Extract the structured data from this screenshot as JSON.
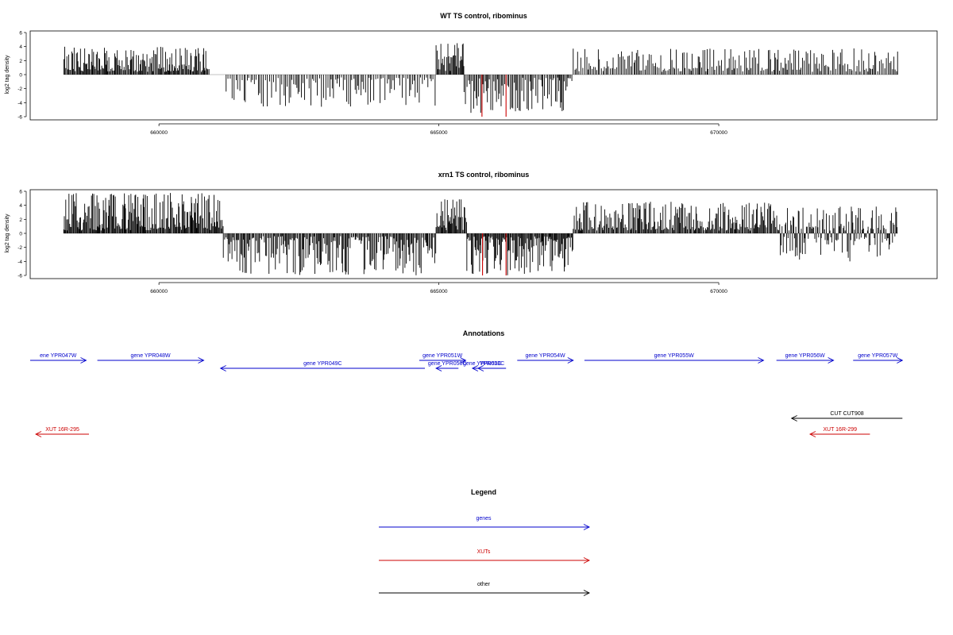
{
  "chart_data": [
    {
      "type": "bar",
      "title": "WT TS control, ribominus",
      "ylabel": "log2 tag density",
      "xlabel": "",
      "ylim": [
        -6,
        6
      ],
      "yticks": [
        6,
        4,
        2,
        0,
        -2,
        -4,
        -6
      ],
      "xticks": [
        660000,
        665000,
        670000
      ],
      "xlim": [
        657700,
        673900
      ],
      "data_start": 658300,
      "data_end": 673200,
      "grid": false,
      "highlight_color": "#cc0000",
      "bar_color": "#000000",
      "segments": [
        {
          "start": 658300,
          "end": 660900,
          "sign": 1,
          "max": 4.0,
          "density": 0.9
        },
        {
          "start": 661200,
          "end": 664950,
          "sign": -1,
          "max": 4.6,
          "density": 0.45
        },
        {
          "start": 664950,
          "end": 665450,
          "sign": 1,
          "max": 4.8,
          "density": 0.9
        },
        {
          "start": 665450,
          "end": 667400,
          "sign": -1,
          "max": 5.5,
          "density": 0.6
        },
        {
          "start": 667400,
          "end": 673200,
          "sign": 1,
          "max": 3.8,
          "density": 0.55
        }
      ],
      "highlights": [
        {
          "x": 665770,
          "value": -6
        },
        {
          "x": 666200,
          "value": -6
        }
      ]
    },
    {
      "type": "bar",
      "title": "xrn1 TS control, ribominus",
      "ylabel": "log2 tag density",
      "xlabel": "",
      "ylim": [
        -6,
        6
      ],
      "yticks": [
        6,
        4,
        2,
        0,
        -2,
        -4,
        -6
      ],
      "xticks": [
        660000,
        665000,
        670000
      ],
      "xlim": [
        657700,
        673900
      ],
      "data_start": 658300,
      "data_end": 673200,
      "grid": false,
      "highlight_color": "#cc0000",
      "bar_color": "#000000",
      "segments": [
        {
          "start": 658300,
          "end": 661150,
          "sign": 1,
          "max": 5.8,
          "density": 1.0
        },
        {
          "start": 661150,
          "end": 664950,
          "sign": -1,
          "max": 6.0,
          "density": 0.8
        },
        {
          "start": 664950,
          "end": 665500,
          "sign": 1,
          "max": 5.0,
          "density": 1.0
        },
        {
          "start": 665500,
          "end": 667400,
          "sign": -1,
          "max": 6.0,
          "density": 1.0
        },
        {
          "start": 667400,
          "end": 671100,
          "sign": 1,
          "max": 4.5,
          "density": 0.85
        },
        {
          "start": 671100,
          "end": 673200,
          "sign": 0,
          "max": 4.0,
          "density": 0.95
        }
      ],
      "highlights": [
        {
          "x": 665780,
          "value": -6
        },
        {
          "x": 666200,
          "value": -6
        }
      ]
    }
  ],
  "annotations": {
    "title": "Annotations",
    "features": [
      {
        "label": "ene YPR047W",
        "color": "#0000cc",
        "start": 657700,
        "end": 658700,
        "dir": "right",
        "row": 0
      },
      {
        "label": "gene YPR048W",
        "color": "#0000cc",
        "start": 658900,
        "end": 660800,
        "dir": "right",
        "row": 0
      },
      {
        "label": "gene YPR049C",
        "color": "#0000cc",
        "start": 661100,
        "end": 664750,
        "dir": "left",
        "row": 1
      },
      {
        "label": "gene YPR051W",
        "color": "#0000cc",
        "start": 664650,
        "end": 665480,
        "dir": "right",
        "row": 0
      },
      {
        "label": "gene YPR050C",
        "color": "#0000cc",
        "start": 664950,
        "end": 665350,
        "dir": "left",
        "row": 1
      },
      {
        "label": "gene YPR052C",
        "color": "#0000cc",
        "start": 665600,
        "end": 665950,
        "dir": "left",
        "row": 1
      },
      {
        "label": "YPR053C",
        "color": "#0000cc",
        "start": 665700,
        "end": 666200,
        "dir": "left",
        "row": 1
      },
      {
        "label": "gene YPR054W",
        "color": "#0000cc",
        "start": 666400,
        "end": 667400,
        "dir": "right",
        "row": 0
      },
      {
        "label": "gene YPR055W",
        "color": "#0000cc",
        "start": 667600,
        "end": 670800,
        "dir": "right",
        "row": 0
      },
      {
        "label": "gene YPR056W",
        "color": "#0000cc",
        "start": 671030,
        "end": 672050,
        "dir": "right",
        "row": 0
      },
      {
        "label": "gene YPR057W",
        "color": "#0000cc",
        "start": 672400,
        "end": 673280,
        "dir": "right",
        "row": 0
      },
      {
        "label": "CUT CUT908",
        "color": "#000000",
        "start": 671300,
        "end": 673280,
        "dir": "left",
        "row": 2
      },
      {
        "label": "XUT 16R-295",
        "color": "#cc0000",
        "start": 657800,
        "end": 658750,
        "dir": "left",
        "row": 3
      },
      {
        "label": "XUT 16R-299",
        "color": "#cc0000",
        "start": 671630,
        "end": 672700,
        "dir": "left",
        "row": 3
      }
    ]
  },
  "legend": {
    "title": "Legend",
    "items": [
      {
        "label": "genes",
        "color": "#0000cc"
      },
      {
        "label": "XUTs",
        "color": "#cc0000"
      },
      {
        "label": "other",
        "color": "#000000"
      }
    ]
  }
}
